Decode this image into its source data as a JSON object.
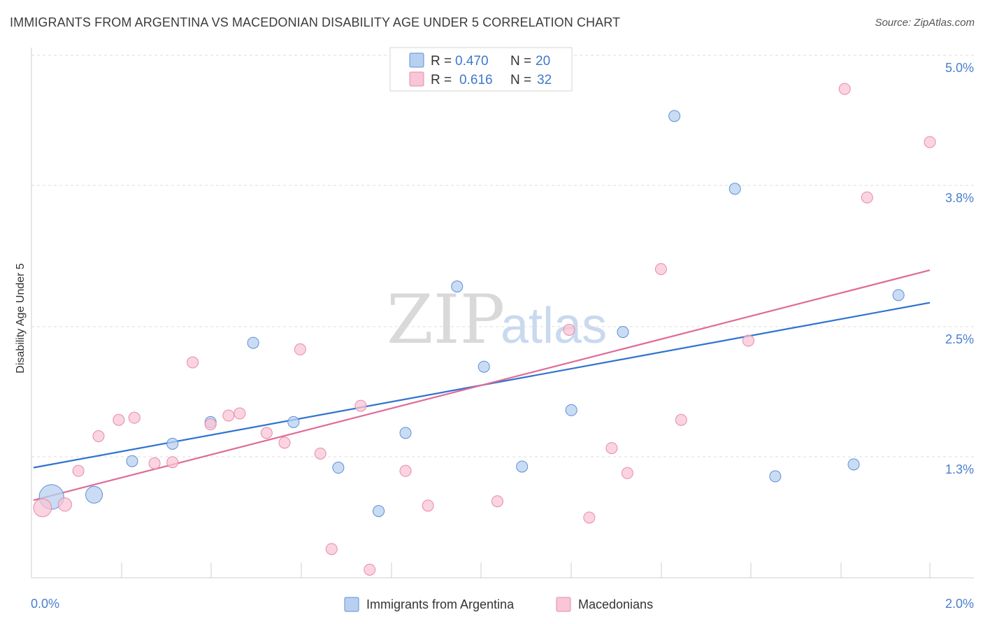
{
  "header": {
    "title": "IMMIGRANTS FROM ARGENTINA VS MACEDONIAN DISABILITY AGE UNDER 5 CORRELATION CHART",
    "source": "Source: ZipAtlas.com"
  },
  "watermark": {
    "zip": "ZIP",
    "atlas": "atlas"
  },
  "colors": {
    "blue_fill": "#b8d0f0",
    "blue_stroke": "#5b8fd6",
    "blue_line": "#2f72d0",
    "pink_fill": "#f8c6d6",
    "pink_stroke": "#e88aa8",
    "pink_line": "#e06a98",
    "axis_label": "#4a7fcc",
    "grid": "#dddddd"
  },
  "legend": {
    "rows": [
      {
        "r_label": "R = ",
        "r_value": "0.470",
        "n_label": "N = ",
        "n_value": "20"
      },
      {
        "r_label": "R = ",
        "r_value": "0.616",
        "n_label": "N = ",
        "n_value": "32"
      }
    ]
  },
  "chart_data": {
    "type": "scatter",
    "title": "IMMIGRANTS FROM ARGENTINA VS MACEDONIAN DISABILITY AGE UNDER 5 CORRELATION CHART",
    "xlabel": "",
    "ylabel": "Disability Age Under 5",
    "xlim": [
      0.0,
      2.0
    ],
    "ylim": [
      0.0,
      5.2
    ],
    "x_tick_labels": [
      "0.0%",
      "2.0%"
    ],
    "y_ticks": [
      {
        "value": 1.3,
        "label": "1.3%"
      },
      {
        "value": 2.5,
        "label": "2.5%"
      },
      {
        "value": 3.8,
        "label": "3.8%"
      },
      {
        "value": 5.0,
        "label": "5.0%"
      }
    ],
    "grid": true,
    "legend_position": "top-center",
    "series": [
      {
        "name": "Immigrants from Argentina",
        "color": "#5b8fd6",
        "points": [
          {
            "x": 0.04,
            "y": 0.93,
            "size": 2.2
          },
          {
            "x": 0.135,
            "y": 0.95,
            "size": 1.5
          },
          {
            "x": 0.22,
            "y": 1.26,
            "size": 1
          },
          {
            "x": 0.31,
            "y": 1.42,
            "size": 1
          },
          {
            "x": 0.395,
            "y": 1.62,
            "size": 1
          },
          {
            "x": 0.49,
            "y": 2.35,
            "size": 1
          },
          {
            "x": 0.58,
            "y": 1.62,
            "size": 1
          },
          {
            "x": 0.68,
            "y": 1.2,
            "size": 1
          },
          {
            "x": 0.77,
            "y": 0.8,
            "size": 1
          },
          {
            "x": 0.83,
            "y": 1.52,
            "size": 1
          },
          {
            "x": 0.945,
            "y": 2.87,
            "size": 1
          },
          {
            "x": 1.005,
            "y": 2.13,
            "size": 1
          },
          {
            "x": 1.09,
            "y": 1.21,
            "size": 1
          },
          {
            "x": 1.2,
            "y": 1.73,
            "size": 1
          },
          {
            "x": 1.315,
            "y": 2.45,
            "size": 1
          },
          {
            "x": 1.43,
            "y": 4.44,
            "size": 1
          },
          {
            "x": 1.565,
            "y": 3.77,
            "size": 1
          },
          {
            "x": 1.655,
            "y": 1.12,
            "size": 1
          },
          {
            "x": 1.83,
            "y": 1.23,
            "size": 1
          },
          {
            "x": 1.93,
            "y": 2.79,
            "size": 1
          }
        ],
        "trendline": {
          "x": [
            0.0,
            2.0
          ],
          "y": [
            1.2,
            2.72
          ]
        }
      },
      {
        "name": "Macedonians",
        "color": "#e88aa8",
        "points": [
          {
            "x": 0.02,
            "y": 0.83,
            "size": 1.6
          },
          {
            "x": 0.07,
            "y": 0.86,
            "size": 1.2
          },
          {
            "x": 0.1,
            "y": 1.17,
            "size": 1
          },
          {
            "x": 0.145,
            "y": 1.49,
            "size": 1
          },
          {
            "x": 0.19,
            "y": 1.64,
            "size": 1
          },
          {
            "x": 0.225,
            "y": 1.66,
            "size": 1
          },
          {
            "x": 0.27,
            "y": 1.24,
            "size": 1
          },
          {
            "x": 0.31,
            "y": 1.25,
            "size": 1
          },
          {
            "x": 0.355,
            "y": 2.17,
            "size": 1
          },
          {
            "x": 0.395,
            "y": 1.6,
            "size": 1
          },
          {
            "x": 0.435,
            "y": 1.68,
            "size": 1
          },
          {
            "x": 0.46,
            "y": 1.7,
            "size": 1
          },
          {
            "x": 0.52,
            "y": 1.52,
            "size": 1
          },
          {
            "x": 0.56,
            "y": 1.43,
            "size": 1
          },
          {
            "x": 0.595,
            "y": 2.29,
            "size": 1
          },
          {
            "x": 0.64,
            "y": 1.33,
            "size": 1
          },
          {
            "x": 0.665,
            "y": 0.45,
            "size": 1
          },
          {
            "x": 0.73,
            "y": 1.77,
            "size": 1
          },
          {
            "x": 0.75,
            "y": 0.26,
            "size": 1
          },
          {
            "x": 0.83,
            "y": 1.17,
            "size": 1
          },
          {
            "x": 0.88,
            "y": 0.85,
            "size": 1
          },
          {
            "x": 1.035,
            "y": 0.89,
            "size": 1
          },
          {
            "x": 1.195,
            "y": 2.47,
            "size": 1
          },
          {
            "x": 1.24,
            "y": 0.74,
            "size": 1
          },
          {
            "x": 1.29,
            "y": 1.38,
            "size": 1
          },
          {
            "x": 1.325,
            "y": 1.15,
            "size": 1
          },
          {
            "x": 1.4,
            "y": 3.03,
            "size": 1
          },
          {
            "x": 1.445,
            "y": 1.64,
            "size": 1
          },
          {
            "x": 1.595,
            "y": 2.37,
            "size": 1
          },
          {
            "x": 1.81,
            "y": 4.69,
            "size": 1
          },
          {
            "x": 1.86,
            "y": 3.69,
            "size": 1
          },
          {
            "x": 2.0,
            "y": 4.2,
            "size": 1
          }
        ],
        "trendline": {
          "x": [
            0.0,
            2.0
          ],
          "y": [
            0.9,
            3.02
          ]
        }
      }
    ]
  }
}
